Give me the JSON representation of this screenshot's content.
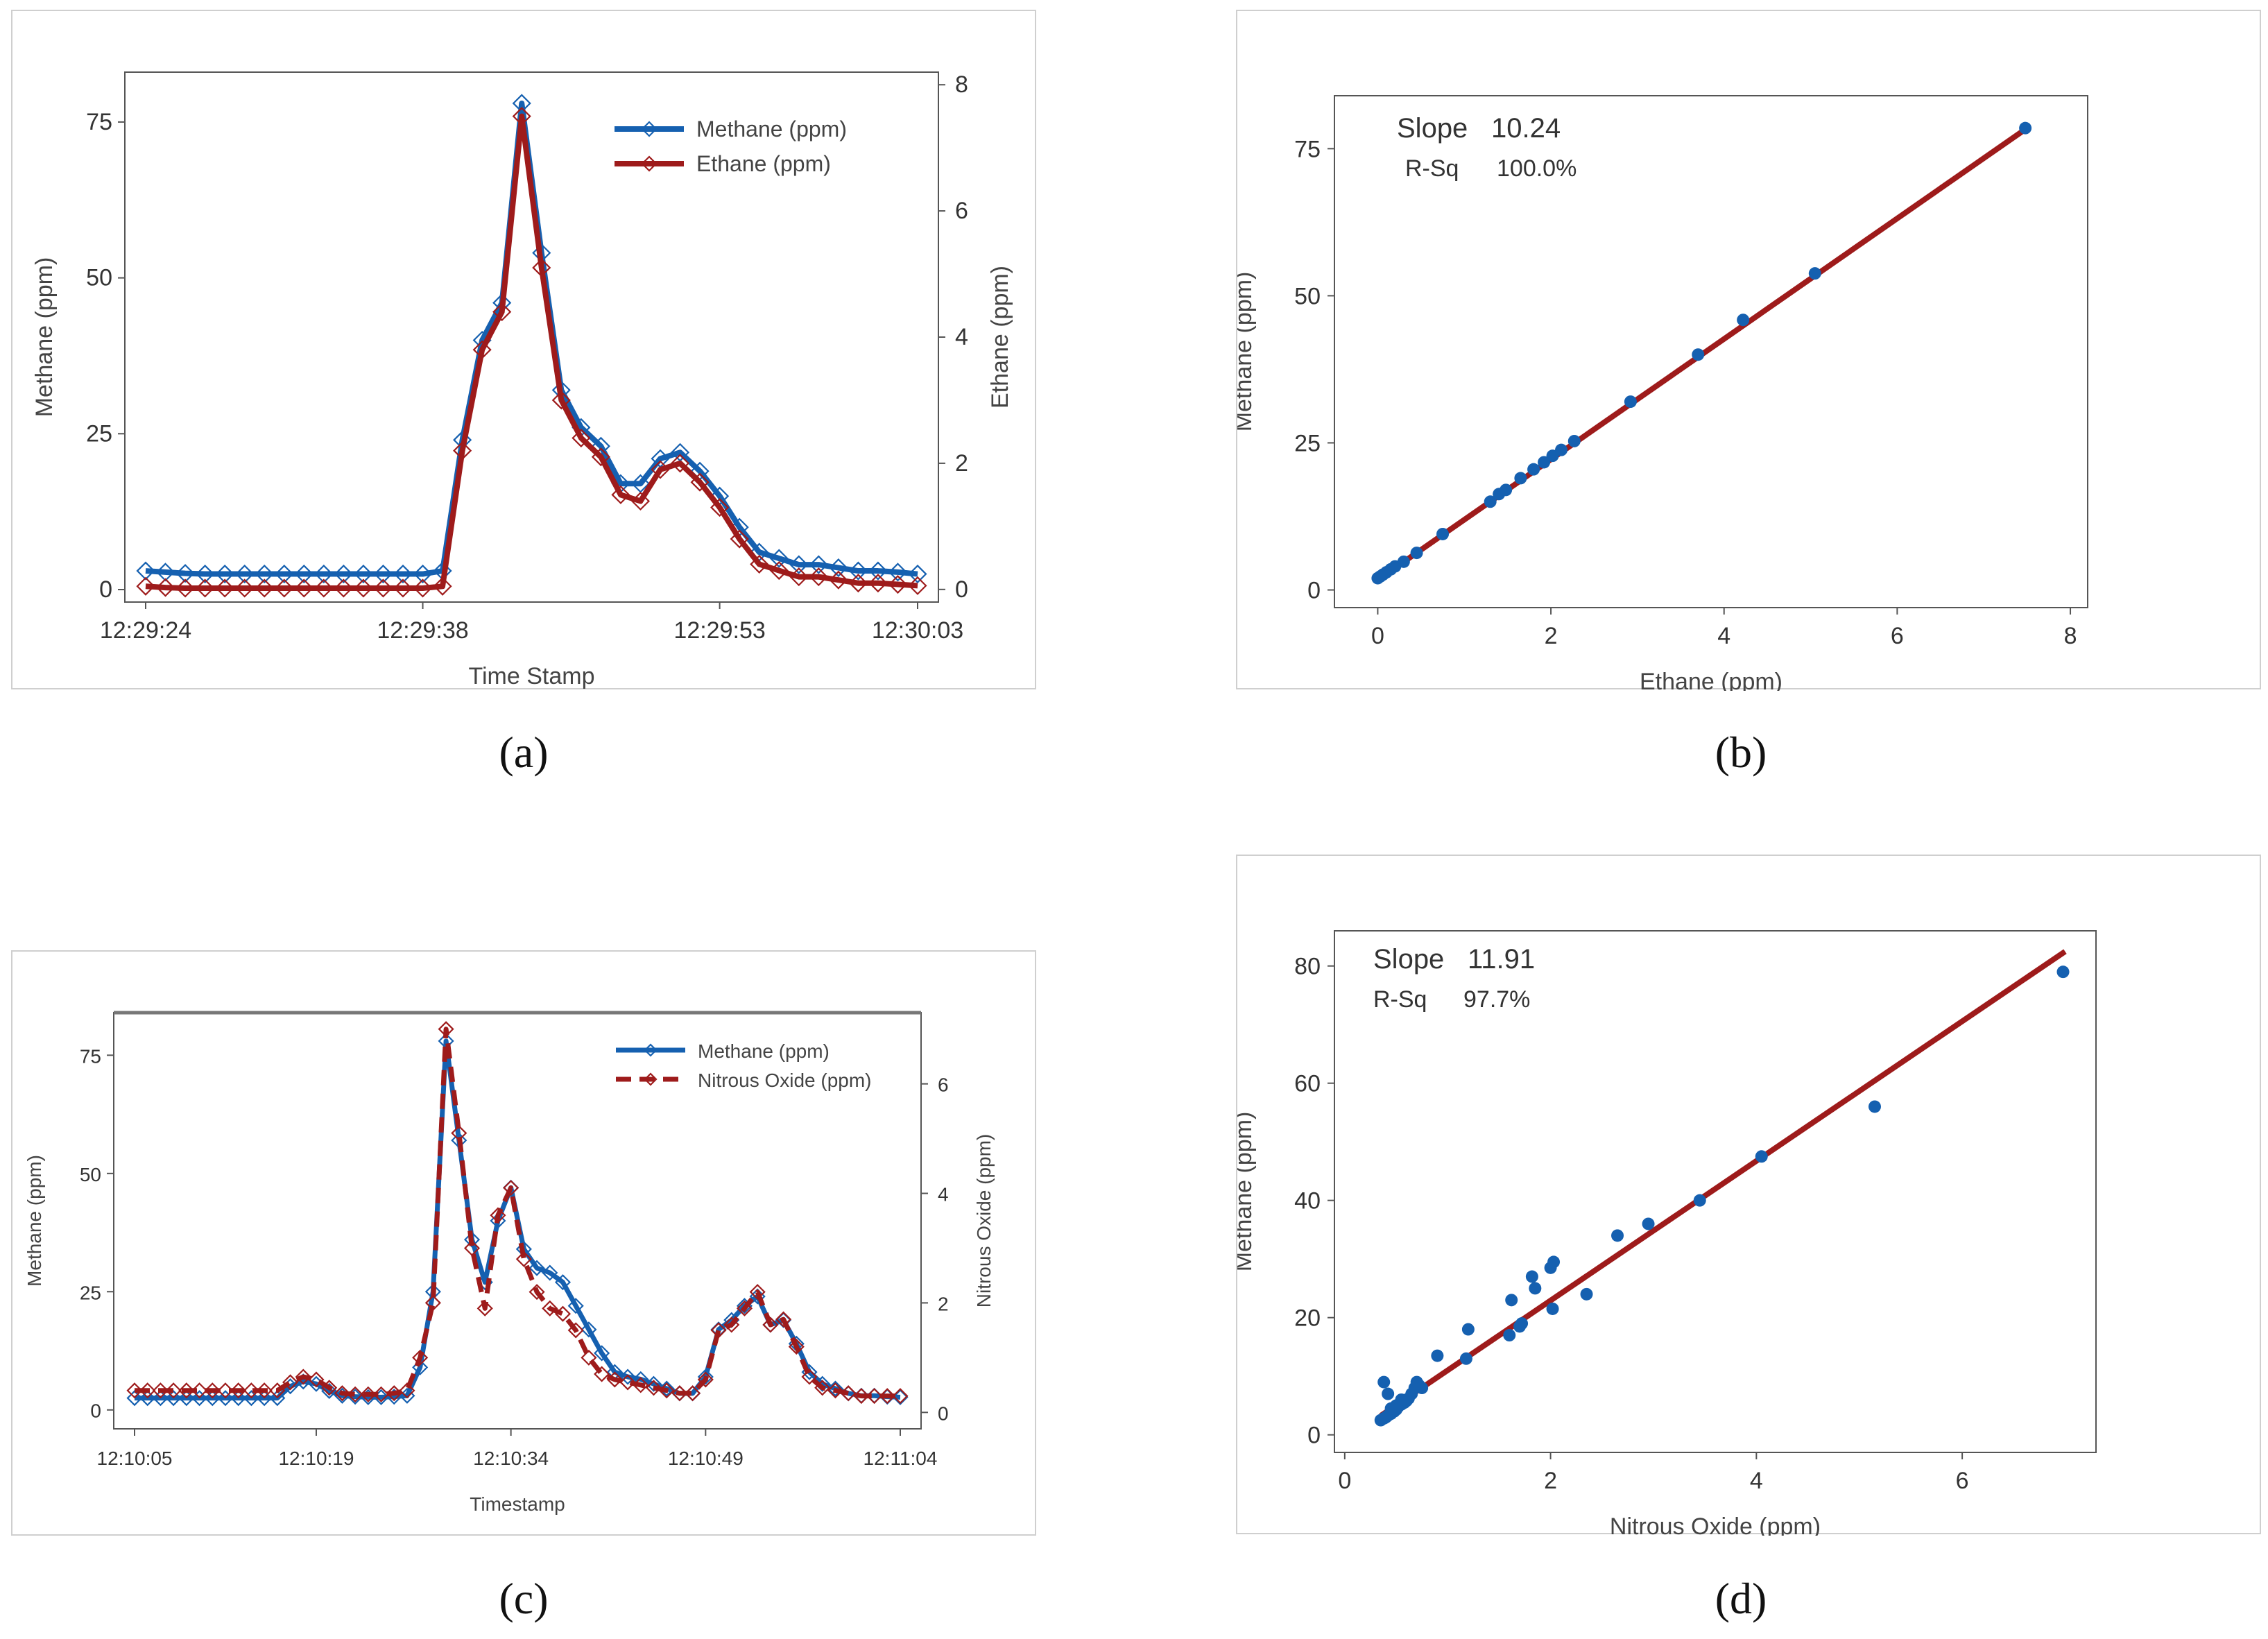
{
  "colors": {
    "methane": "#1560b0",
    "ethane": "#9e1b1b",
    "nitrous": "#9e1b1b",
    "fit": "#9e1b1b",
    "points": "#1560b0",
    "frame": "#555555"
  },
  "labels": {
    "a": "(a)",
    "b": "(b)",
    "c": "(c)",
    "d": "(d)"
  },
  "chart_data": [
    {
      "id": "a",
      "type": "line",
      "xlabel": "Time Stamp",
      "ylabel_left": "Methane (ppm)",
      "ylabel_right": "Ethane (ppm)",
      "ylim_left": [
        -2,
        83
      ],
      "ylim_right": [
        -0.2,
        8.2
      ],
      "yticks_left": [
        "0",
        "25",
        "50",
        "75"
      ],
      "yticks_right": [
        "0",
        "2",
        "4",
        "6",
        "8"
      ],
      "xtick_labels": [
        {
          "index": 0,
          "label": "12:29:24"
        },
        {
          "index": 14,
          "label": "12:29:38"
        },
        {
          "index": 29,
          "label": "12:29:53"
        },
        {
          "index": 39,
          "label": "12:30:03"
        }
      ],
      "legend": [
        "Methane (ppm)",
        "Ethane (ppm)"
      ],
      "series": [
        {
          "name": "Methane (ppm)",
          "axis": "left",
          "values": [
            3,
            2.8,
            2.6,
            2.5,
            2.5,
            2.5,
            2.5,
            2.5,
            2.5,
            2.5,
            2.5,
            2.5,
            2.5,
            2.5,
            2.5,
            3,
            24,
            40,
            46,
            78,
            54,
            32,
            26,
            23,
            17,
            17,
            21,
            22,
            19,
            15,
            10,
            6,
            5,
            4,
            4,
            3.5,
            3,
            3,
            2.8,
            2.5
          ]
        },
        {
          "name": "Ethane (ppm)",
          "axis": "right",
          "values": [
            0.05,
            0.03,
            0.02,
            0.02,
            0.02,
            0.02,
            0.02,
            0.02,
            0.02,
            0.02,
            0.02,
            0.02,
            0.02,
            0.02,
            0.02,
            0.05,
            2.2,
            3.8,
            4.4,
            7.5,
            5.1,
            3.0,
            2.4,
            2.1,
            1.5,
            1.4,
            1.9,
            2.0,
            1.7,
            1.3,
            0.8,
            0.4,
            0.3,
            0.2,
            0.2,
            0.15,
            0.1,
            0.1,
            0.08,
            0.06
          ]
        }
      ]
    },
    {
      "id": "b",
      "type": "scatter",
      "xlabel": "Ethane (ppm)",
      "ylabel": "Methane (ppm)",
      "xlim": [
        -0.5,
        8.2
      ],
      "ylim": [
        -3,
        84
      ],
      "xticks": [
        0,
        2,
        4,
        6,
        8
      ],
      "yticks": [
        0,
        25,
        50,
        75
      ],
      "slope_label": "Slope",
      "slope_value": "10.24",
      "rsq_label": "R-Sq",
      "rsq_value": "100.0%",
      "fit": {
        "slope": 10.24,
        "intercept": 1.7,
        "x_range": [
          0,
          7.5
        ]
      },
      "points": [
        [
          0,
          2
        ],
        [
          0.03,
          2.3
        ],
        [
          0.06,
          2.6
        ],
        [
          0.1,
          3
        ],
        [
          0.15,
          3.5
        ],
        [
          0.2,
          4
        ],
        [
          0.3,
          4.8
        ],
        [
          0.45,
          6.3
        ],
        [
          0.75,
          9.5
        ],
        [
          1.3,
          15
        ],
        [
          1.4,
          16.3
        ],
        [
          1.48,
          17
        ],
        [
          1.65,
          19
        ],
        [
          1.8,
          20.5
        ],
        [
          1.92,
          21.7
        ],
        [
          2.02,
          22.8
        ],
        [
          2.12,
          23.8
        ],
        [
          2.27,
          25.3
        ],
        [
          2.92,
          32
        ],
        [
          3.7,
          40
        ],
        [
          4.22,
          45.9
        ],
        [
          5.05,
          53.8
        ],
        [
          7.48,
          78.5
        ]
      ]
    },
    {
      "id": "c",
      "type": "line",
      "xlabel": "Timestamp",
      "ylabel_left": "Methane (ppm)",
      "ylabel_right": "Nitrous Oxide (ppm)",
      "ylim_left": [
        -4,
        84
      ],
      "ylim_right": [
        -0.3,
        7.3
      ],
      "yticks_left": [
        "0",
        "25",
        "50",
        "75"
      ],
      "yticks_right": [
        "0",
        "2",
        "4",
        "6"
      ],
      "xtick_labels": [
        {
          "index": 0,
          "label": "12:10:05"
        },
        {
          "index": 14,
          "label": "12:10:19"
        },
        {
          "index": 29,
          "label": "12:10:34"
        },
        {
          "index": 44,
          "label": "12:10:49"
        },
        {
          "index": 59,
          "label": "12:11:04"
        }
      ],
      "legend": [
        "Methane (ppm)",
        "Nitrous Oxide (ppm)"
      ],
      "series": [
        {
          "name": "Methane (ppm)",
          "axis": "left",
          "values": [
            2.5,
            2.5,
            2.5,
            2.5,
            2.5,
            2.5,
            2.5,
            2.5,
            2.5,
            2.5,
            2.5,
            2.5,
            5,
            6,
            5.5,
            4,
            3,
            2.8,
            2.7,
            2.7,
            2.8,
            3,
            9,
            25,
            78,
            57,
            36,
            27,
            40,
            47,
            34,
            30,
            29,
            27,
            22,
            17,
            12,
            8,
            7,
            6.5,
            5.5,
            4.5,
            3.5,
            3.5,
            7,
            17,
            19,
            22,
            24,
            18,
            19,
            14,
            8,
            5.5,
            4.5,
            3.5,
            3,
            3,
            2.8,
            2.7
          ]
        },
        {
          "name": "Nitrous Oxide (ppm)",
          "axis": "right",
          "values": [
            0.4,
            0.4,
            0.4,
            0.4,
            0.4,
            0.4,
            0.4,
            0.4,
            0.4,
            0.4,
            0.4,
            0.4,
            0.55,
            0.65,
            0.6,
            0.45,
            0.35,
            0.33,
            0.33,
            0.33,
            0.35,
            0.4,
            1.0,
            2.0,
            7.0,
            5.1,
            3.0,
            1.9,
            3.6,
            4.1,
            2.8,
            2.2,
            1.9,
            1.8,
            1.5,
            1.0,
            0.7,
            0.6,
            0.55,
            0.5,
            0.45,
            0.4,
            0.35,
            0.35,
            0.6,
            1.5,
            1.6,
            1.9,
            2.2,
            1.6,
            1.7,
            1.2,
            0.65,
            0.45,
            0.4,
            0.35,
            0.3,
            0.3,
            0.3,
            0.3
          ]
        }
      ]
    },
    {
      "id": "d",
      "type": "scatter",
      "xlabel": "Nitrous Oxide (ppm)",
      "ylabel": "Methane (ppm)",
      "xlim": [
        -0.1,
        7.3
      ],
      "ylim": [
        -3,
        86
      ],
      "xticks": [
        0,
        2,
        4,
        6
      ],
      "yticks": [
        0,
        20,
        40,
        60,
        80
      ],
      "slope_label": "Slope",
      "slope_value": "11.91",
      "rsq_label": "R-Sq",
      "rsq_value": "97.7%",
      "fit": {
        "slope": 11.91,
        "intercept": -0.9,
        "x_range": [
          0.35,
          7.0
        ]
      },
      "points": [
        [
          0.35,
          2.5
        ],
        [
          0.38,
          2.8
        ],
        [
          0.4,
          3
        ],
        [
          0.42,
          3.3
        ],
        [
          0.45,
          3.6
        ],
        [
          0.48,
          4
        ],
        [
          0.5,
          4.3
        ],
        [
          0.52,
          4.8
        ],
        [
          0.55,
          5.2
        ],
        [
          0.58,
          5.5
        ],
        [
          0.6,
          5.8
        ],
        [
          0.62,
          6.2
        ],
        [
          0.5,
          5
        ],
        [
          0.45,
          4.5
        ],
        [
          0.65,
          7
        ],
        [
          0.68,
          8
        ],
        [
          0.7,
          9
        ],
        [
          0.72,
          8.5
        ],
        [
          0.75,
          8
        ],
        [
          0.38,
          9
        ],
        [
          0.42,
          7
        ],
        [
          0.55,
          6
        ],
        [
          0.9,
          13.5
        ],
        [
          1.18,
          13
        ],
        [
          1.2,
          18
        ],
        [
          1.6,
          17
        ],
        [
          1.62,
          23
        ],
        [
          1.7,
          18.5
        ],
        [
          1.72,
          19
        ],
        [
          1.82,
          27
        ],
        [
          1.85,
          25
        ],
        [
          2.0,
          28.5
        ],
        [
          2.03,
          29.5
        ],
        [
          2.02,
          21.5
        ],
        [
          2.35,
          24
        ],
        [
          2.65,
          34
        ],
        [
          2.95,
          36
        ],
        [
          3.45,
          40
        ],
        [
          4.05,
          47.5
        ],
        [
          5.15,
          56
        ],
        [
          6.98,
          79
        ]
      ]
    }
  ]
}
